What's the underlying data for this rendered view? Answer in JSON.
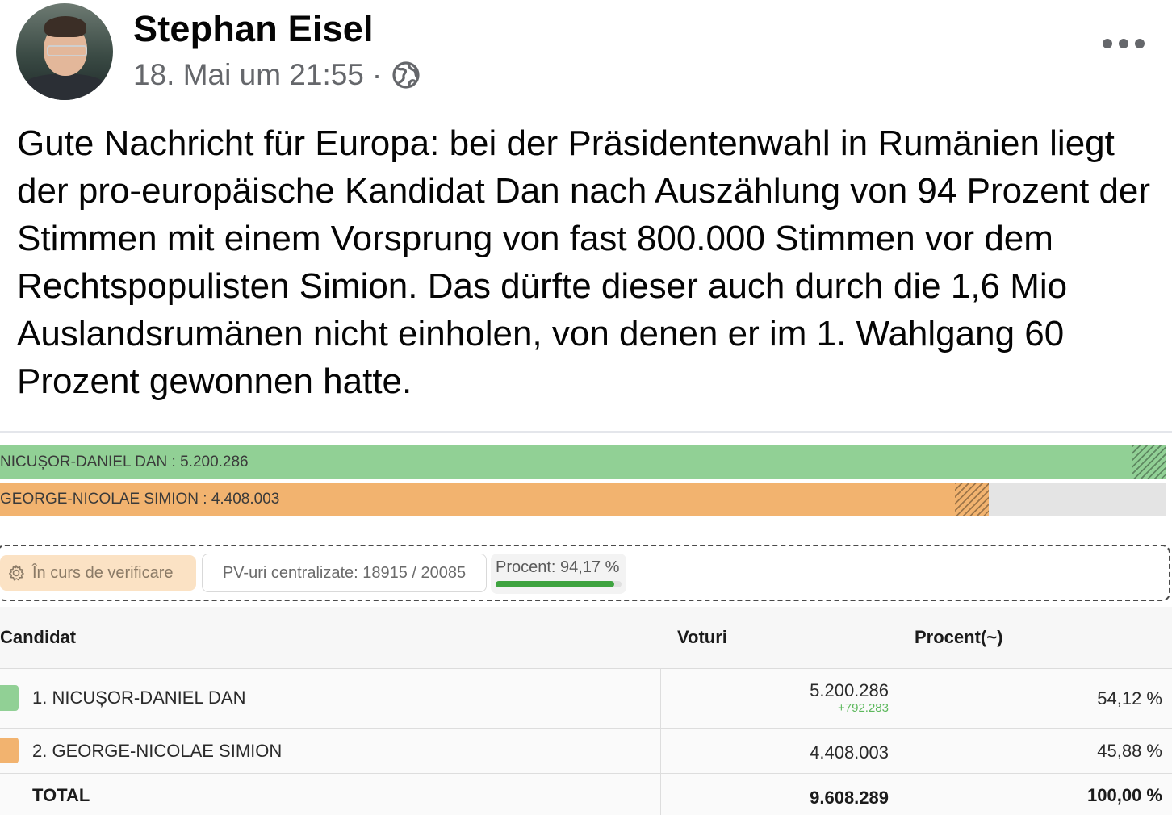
{
  "post": {
    "author": "Stephan Eisel",
    "timestamp": "18. Mai um 21:55",
    "separator": "·",
    "audience_icon": "globe-icon",
    "more_icon": "more-horizontal-icon",
    "text": "Gute Nachricht für Europa: bei der Präsidentenwahl in Rumänien liegt der pro-europäische Kandidat Dan nach Auszählung von 94 Prozent der Stimmen mit einem Vorsprung von fast 800.000 Stimmen vor dem Rechtspopulisten Simion. Das dürfte dieser auch durch die 1,6 Mio Auslandsrumänen nicht einholen, von denen er im 1. Wahlgang 60 Prozent gewonnen hatte."
  },
  "results": {
    "bars": [
      {
        "label": "NICUȘOR-DANIEL DAN : 5.200.286",
        "fraction": 1.0,
        "color": "#91d095"
      },
      {
        "label": "GEORGE-NICOLAE SIMION : 4.408.003",
        "fraction": 0.8476,
        "color": "#f2b36f"
      }
    ],
    "status": {
      "verify_label": "În curs de verificare",
      "verify_icon": "gear-icon",
      "pv_label": "PV-uri centralizate: 18915 / 20085",
      "procent_label": "Procent: 94,17 %",
      "procent_value": 94.17
    },
    "table": {
      "headers": {
        "candidate": "Candidat",
        "votes": "Voturi",
        "percent": "Procent(~)"
      },
      "rows": [
        {
          "name": "1. NICUȘOR-DANIEL DAN",
          "votes": "5.200.286",
          "diff": "+792.283",
          "percent": "54,12 %",
          "color": "#91d095"
        },
        {
          "name": "2. GEORGE-NICOLAE SIMION",
          "votes": "4.408.003",
          "diff": "",
          "percent": "45,88 %",
          "color": "#f2b36f"
        }
      ],
      "total": {
        "name": "TOTAL",
        "votes": "9.608.289",
        "percent": "100,00 %"
      }
    }
  }
}
